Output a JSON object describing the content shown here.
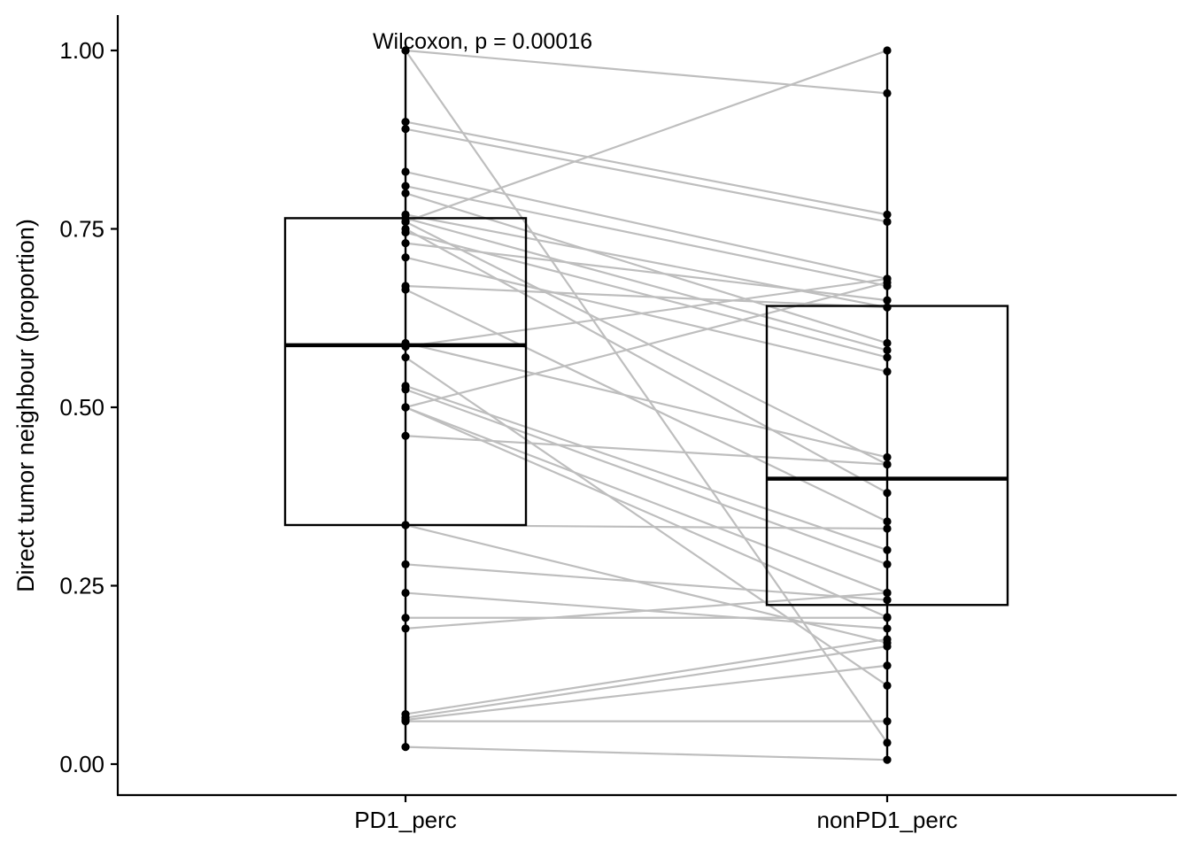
{
  "chart_data": {
    "type": "box",
    "title": "",
    "xlabel": "",
    "ylabel": "Direct tumor neighbour (proportion)",
    "ylim": [
      -0.045,
      1.05
    ],
    "yticks": [
      0.0,
      0.25,
      0.5,
      0.75,
      1.0
    ],
    "ytick_labels": [
      "0.00",
      "0.25",
      "0.50",
      "0.75",
      "1.00"
    ],
    "categories": [
      "PD1_perc",
      "nonPD1_perc"
    ],
    "annotation": "Wilcoxon, p = 0.00016",
    "boxes": [
      {
        "category": "PD1_perc",
        "q1": 0.335,
        "median": 0.587,
        "q3": 0.765,
        "whisker_low": 0.024,
        "whisker_high": 1.0
      },
      {
        "category": "nonPD1_perc",
        "q1": 0.223,
        "median": 0.4,
        "q3": 0.642,
        "whisker_low": 0.006,
        "whisker_high": 1.0
      }
    ],
    "pairs": [
      [
        1.0,
        0.94
      ],
      [
        1.0,
        0.03
      ],
      [
        0.9,
        0.77
      ],
      [
        0.89,
        0.76
      ],
      [
        0.83,
        0.68
      ],
      [
        0.81,
        0.67
      ],
      [
        0.8,
        0.59
      ],
      [
        0.77,
        0.64
      ],
      [
        0.765,
        0.58
      ],
      [
        0.76,
        1.0
      ],
      [
        0.76,
        0.42
      ],
      [
        0.75,
        0.38
      ],
      [
        0.745,
        0.57
      ],
      [
        0.73,
        0.65
      ],
      [
        0.71,
        0.55
      ],
      [
        0.67,
        0.64
      ],
      [
        0.665,
        0.34
      ],
      [
        0.59,
        0.43
      ],
      [
        0.585,
        0.68
      ],
      [
        0.57,
        0.11
      ],
      [
        0.53,
        0.3
      ],
      [
        0.525,
        0.28
      ],
      [
        0.5,
        0.675
      ],
      [
        0.5,
        0.24
      ],
      [
        0.5,
        0.206
      ],
      [
        0.46,
        0.42
      ],
      [
        0.335,
        0.33
      ],
      [
        0.335,
        0.17
      ],
      [
        0.28,
        0.23
      ],
      [
        0.24,
        0.19
      ],
      [
        0.205,
        0.205
      ],
      [
        0.19,
        0.24
      ],
      [
        0.07,
        0.175
      ],
      [
        0.065,
        0.165
      ],
      [
        0.062,
        0.138
      ],
      [
        0.06,
        0.06
      ],
      [
        0.024,
        0.006
      ]
    ]
  }
}
